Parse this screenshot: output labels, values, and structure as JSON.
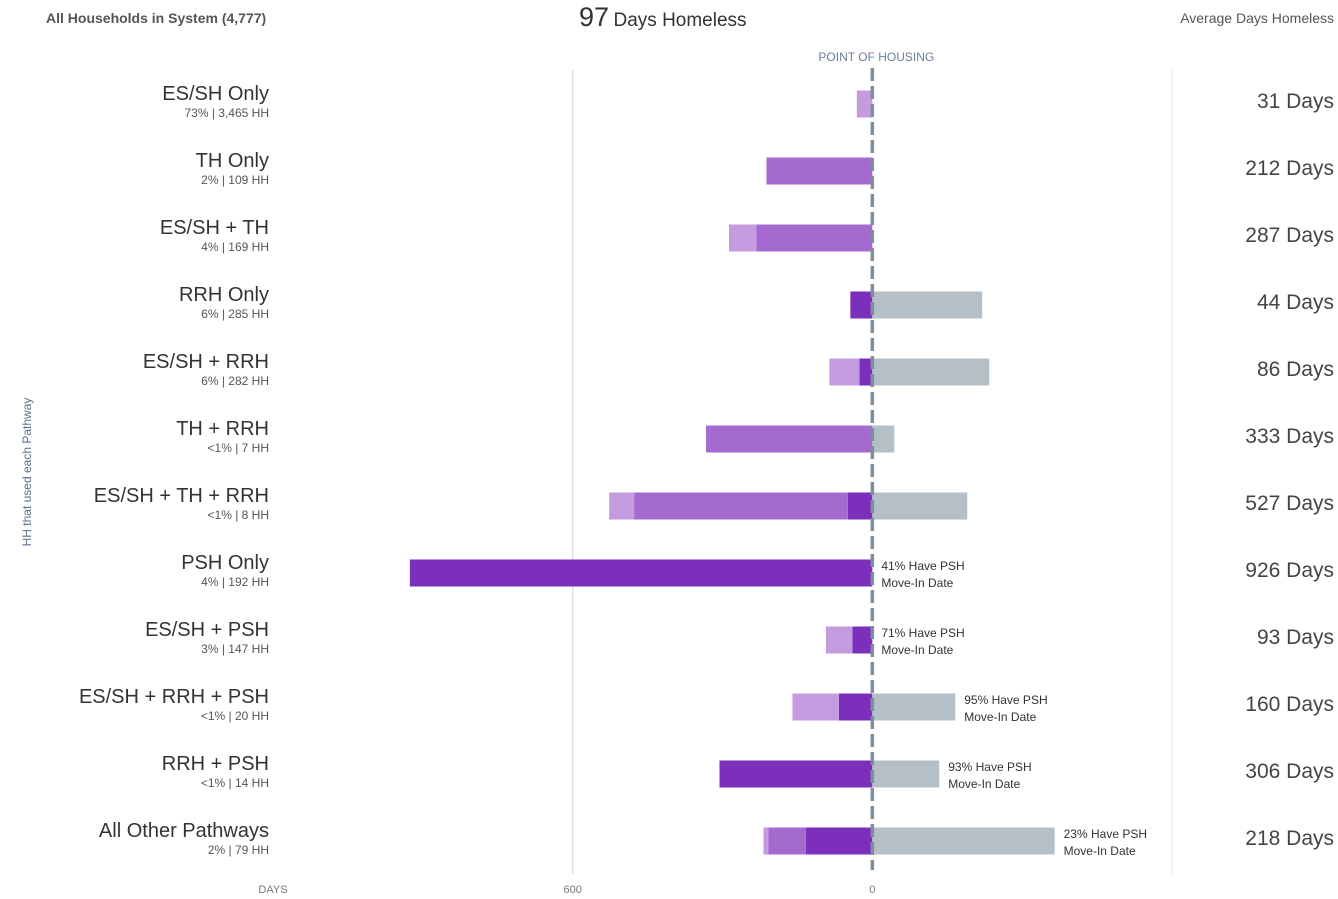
{
  "header": {
    "left": "All Households in System (4,777)",
    "center_value": "97",
    "center_label": "Days Homeless",
    "right": "Average Days Homeless"
  },
  "y_title": "HH that used each Pathway",
  "point_of_housing_label": "POINT OF HOUSING",
  "colors": {
    "light_purple": "#c59be0",
    "mid_purple": "#a56ad0",
    "dark_purple": "#7b2fbb",
    "gray": "#b4bfc7",
    "housing_line": "#7e8e9c",
    "grid": "#dde2e8"
  },
  "chart_data": {
    "type": "bar",
    "orientation": "horizontal diverging",
    "xlabel": "DAYS",
    "x_ticks": [
      {
        "value": -600,
        "label": "600"
      },
      {
        "value": 0,
        "label": "0"
      }
    ],
    "xlim": [
      -1200,
      600
    ],
    "grid": true,
    "categories": [
      {
        "name": "ES/SH Only",
        "sub": "73% | 3,465 HH",
        "avg": "31 Days",
        "light": 31,
        "mid": 0,
        "dark": 0,
        "after": 0,
        "note": ""
      },
      {
        "name": "TH Only",
        "sub": "2% | 109 HH",
        "avg": "212 Days",
        "light": 0,
        "mid": 212,
        "dark": 0,
        "after": 0,
        "note": ""
      },
      {
        "name": "ES/SH + TH",
        "sub": "4% | 169 HH",
        "avg": "287 Days",
        "light": 55,
        "mid": 232,
        "dark": 0,
        "after": 0,
        "note": ""
      },
      {
        "name": "RRH Only",
        "sub": "6% | 285 HH",
        "avg": "44 Days",
        "light": 0,
        "mid": 0,
        "dark": 44,
        "after": 220,
        "note": ""
      },
      {
        "name": "ES/SH + RRH",
        "sub": "6% | 282 HH",
        "avg": "86 Days",
        "light": 60,
        "mid": 0,
        "dark": 26,
        "after": 234,
        "note": ""
      },
      {
        "name": "TH + RRH",
        "sub": "<1% | 7 HH",
        "avg": "333 Days",
        "light": 0,
        "mid": 333,
        "dark": 0,
        "after": 44,
        "note": ""
      },
      {
        "name": "ES/SH + TH + RRH",
        "sub": "<1% | 8 HH",
        "avg": "527 Days",
        "light": 50,
        "mid": 428,
        "dark": 49,
        "after": 190,
        "note": ""
      },
      {
        "name": "PSH Only",
        "sub": "4% | 192 HH",
        "avg": "926 Days",
        "light": 0,
        "mid": 0,
        "dark": 926,
        "after": 0,
        "note": [
          "41% Have PSH",
          "Move-In Date"
        ]
      },
      {
        "name": "ES/SH + PSH",
        "sub": "3% | 147 HH",
        "avg": "93 Days",
        "light": 53,
        "mid": 0,
        "dark": 40,
        "after": 0,
        "note": [
          "71% Have PSH",
          "Move-In Date"
        ]
      },
      {
        "name": "ES/SH + RRH + PSH",
        "sub": "<1% | 20 HH",
        "avg": "160 Days",
        "light": 93,
        "mid": 0,
        "dark": 67,
        "after": 166,
        "note": [
          "95% Have PSH",
          "Move-In Date"
        ]
      },
      {
        "name": "RRH + PSH",
        "sub": "<1% | 14 HH",
        "avg": "306 Days",
        "light": 0,
        "mid": 0,
        "dark": 306,
        "after": 134,
        "note": [
          "93% Have PSH",
          "Move-In Date"
        ]
      },
      {
        "name": "All Other Pathways",
        "sub": "2% | 79 HH",
        "avg": "218 Days",
        "light": 10,
        "mid": 75,
        "dark": 133,
        "after": 365,
        "note": [
          "23% Have PSH",
          "Move-In Date"
        ]
      }
    ]
  }
}
